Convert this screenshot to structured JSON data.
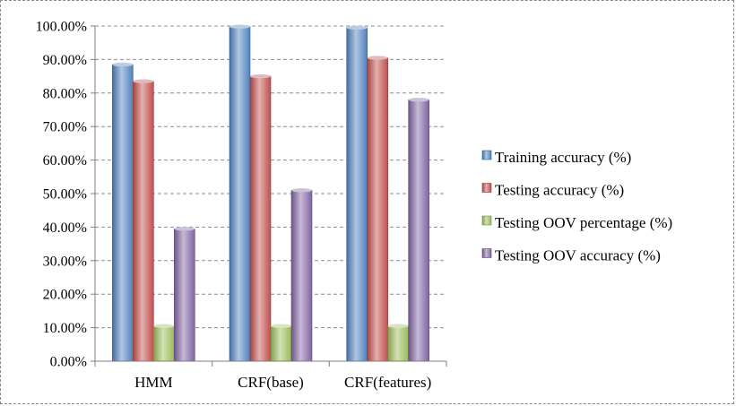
{
  "chart_data": {
    "type": "bar",
    "title": "",
    "xlabel": "",
    "ylabel": "",
    "categories": [
      "HMM",
      "CRF(base)",
      "CRF(features)"
    ],
    "series": [
      {
        "name": "Training accuracy (%)",
        "values": [
          88.5,
          99.8,
          99.5
        ],
        "color": "#4f81bd"
      },
      {
        "name": "Testing accuracy (%)",
        "values": [
          83.5,
          85.0,
          90.5
        ],
        "color": "#c0504d"
      },
      {
        "name": "Testing OOV percentage (%)",
        "values": [
          10.5,
          10.5,
          10.5
        ],
        "color": "#9bbb59"
      },
      {
        "name": "Testing OOV accuracy (%)",
        "values": [
          39.5,
          51.0,
          78.0
        ],
        "color": "#8064a2"
      }
    ],
    "ylim": [
      0,
      100
    ],
    "yticks": [
      "0.00%",
      "10.00%",
      "20.00%",
      "30.00%",
      "40.00%",
      "50.00%",
      "60.00%",
      "70.00%",
      "80.00%",
      "90.00%",
      "100.00%"
    ],
    "grid": true,
    "legend_position": "right"
  }
}
